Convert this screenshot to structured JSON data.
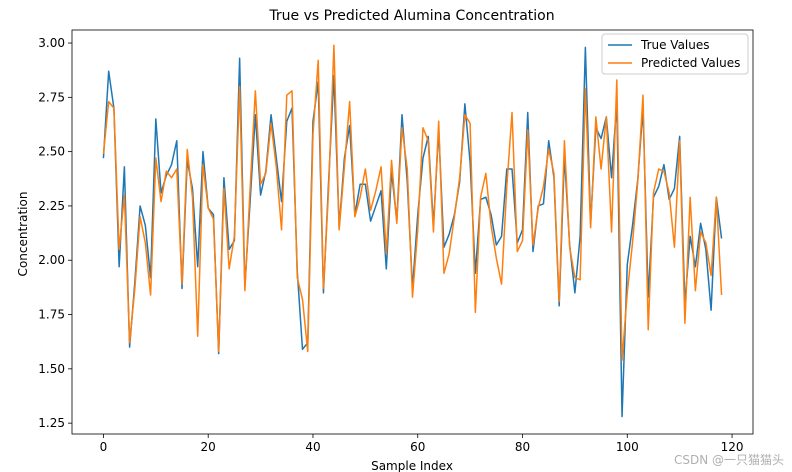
{
  "chart_data": {
    "type": "line",
    "title": "True vs Predicted Alumina Concentration",
    "xlabel": "Sample Index",
    "ylabel": "Concentration",
    "xlim": [
      -6,
      124
    ],
    "ylim": [
      1.2,
      3.06
    ],
    "xticks": [
      0,
      20,
      40,
      60,
      80,
      100,
      120
    ],
    "yticks": [
      1.25,
      1.5,
      1.75,
      2.0,
      2.25,
      2.5,
      2.75,
      3.0
    ],
    "ytick_labels": [
      "1.25",
      "1.50",
      "1.75",
      "2.00",
      "2.25",
      "2.50",
      "2.75",
      "3.00"
    ],
    "grid": false,
    "legend": "top-right",
    "series": [
      {
        "name": "True Values",
        "color": "#1f77b4",
        "values": [
          2.47,
          2.87,
          2.7,
          1.97,
          2.43,
          1.6,
          1.9,
          2.25,
          2.16,
          1.92,
          2.65,
          2.31,
          2.39,
          2.44,
          2.55,
          1.87,
          2.46,
          2.33,
          1.97,
          2.5,
          2.24,
          2.21,
          1.57,
          2.38,
          2.05,
          2.09,
          2.93,
          1.88,
          2.27,
          2.67,
          2.3,
          2.41,
          2.67,
          2.47,
          2.27,
          2.64,
          2.7,
          1.95,
          1.59,
          1.62,
          2.64,
          2.82,
          1.85,
          2.37,
          2.85,
          2.15,
          2.47,
          2.62,
          2.21,
          2.35,
          2.35,
          2.18,
          2.25,
          2.32,
          1.96,
          2.41,
          2.18,
          2.67,
          2.36,
          1.87,
          2.21,
          2.47,
          2.57,
          2.16,
          2.6,
          2.06,
          2.12,
          2.21,
          2.36,
          2.72,
          2.45,
          1.94,
          2.28,
          2.29,
          2.21,
          2.07,
          2.11,
          2.42,
          2.42,
          2.08,
          2.14,
          2.68,
          2.04,
          2.25,
          2.26,
          2.55,
          2.38,
          1.79,
          2.48,
          2.07,
          1.85,
          2.11,
          2.98,
          2.17,
          2.61,
          2.56,
          2.66,
          2.38,
          2.73,
          1.28,
          1.98,
          2.16,
          2.37,
          2.7,
          1.83,
          2.29,
          2.34,
          2.44,
          2.28,
          2.33,
          2.57,
          1.8,
          2.11,
          1.97,
          2.17,
          2.05,
          1.77,
          2.29,
          2.1
        ]
      },
      {
        "name": "Predicted Values",
        "color": "#ff7f0e",
        "values": [
          2.49,
          2.73,
          2.7,
          2.05,
          2.3,
          1.62,
          1.87,
          2.2,
          2.08,
          1.84,
          2.47,
          2.27,
          2.41,
          2.38,
          2.42,
          1.89,
          2.51,
          2.29,
          1.65,
          2.44,
          2.24,
          2.19,
          1.58,
          2.33,
          1.96,
          2.11,
          2.8,
          1.86,
          2.33,
          2.78,
          2.35,
          2.4,
          2.63,
          2.43,
          2.14,
          2.76,
          2.78,
          1.92,
          1.82,
          1.58,
          2.58,
          2.92,
          1.87,
          2.33,
          2.99,
          2.14,
          2.43,
          2.73,
          2.2,
          2.29,
          2.42,
          2.23,
          2.32,
          2.43,
          2.03,
          2.46,
          2.17,
          2.61,
          2.42,
          1.83,
          2.14,
          2.61,
          2.55,
          2.13,
          2.64,
          1.94,
          2.03,
          2.2,
          2.38,
          2.67,
          2.63,
          1.76,
          2.29,
          2.4,
          2.16,
          2.01,
          1.89,
          2.34,
          2.68,
          2.04,
          2.09,
          2.6,
          2.07,
          2.24,
          2.34,
          2.51,
          2.4,
          1.81,
          2.55,
          2.06,
          1.92,
          1.91,
          2.79,
          2.15,
          2.66,
          2.42,
          2.66,
          2.13,
          2.83,
          1.54,
          1.85,
          2.08,
          2.36,
          2.76,
          1.68,
          2.31,
          2.42,
          2.41,
          2.31,
          2.06,
          2.55,
          1.71,
          2.29,
          1.86,
          2.13,
          2.08,
          1.93,
          2.29,
          1.84
        ]
      }
    ]
  },
  "watermark": "CSDN @一只猫猫头"
}
